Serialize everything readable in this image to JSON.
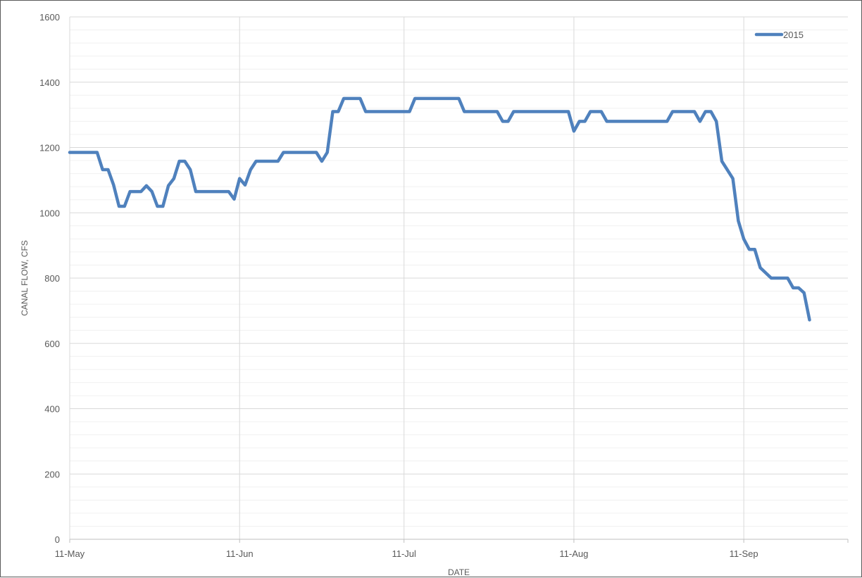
{
  "chart_data": {
    "type": "line",
    "xlabel": "DATE",
    "ylabel": "CANAL FLOW, CFS",
    "ylim": [
      0,
      1600
    ],
    "y_ticks": [
      0,
      200,
      400,
      600,
      800,
      1000,
      1200,
      1400,
      1600
    ],
    "x_ticks": [
      "11-May",
      "11-Jun",
      "11-Jul",
      "11-Aug",
      "11-Sep"
    ],
    "x_range": [
      "2015-05-11",
      "2015-09-30"
    ],
    "grid": true,
    "legend_position": "top-right",
    "series": [
      {
        "name": "2015",
        "color": "#4f81bd",
        "points": [
          [
            "2015-05-11",
            1185
          ],
          [
            "2015-05-16",
            1185
          ],
          [
            "2015-05-17",
            1132
          ],
          [
            "2015-05-18",
            1132
          ],
          [
            "2015-05-19",
            1085
          ],
          [
            "2015-05-20",
            1020
          ],
          [
            "2015-05-21",
            1020
          ],
          [
            "2015-05-22",
            1065
          ],
          [
            "2015-05-24",
            1065
          ],
          [
            "2015-05-25",
            1083
          ],
          [
            "2015-05-26",
            1065
          ],
          [
            "2015-05-27",
            1020
          ],
          [
            "2015-05-28",
            1020
          ],
          [
            "2015-05-29",
            1083
          ],
          [
            "2015-05-30",
            1105
          ],
          [
            "2015-05-31",
            1158
          ],
          [
            "2015-06-01",
            1158
          ],
          [
            "2015-06-02",
            1132
          ],
          [
            "2015-06-03",
            1065
          ],
          [
            "2015-06-09",
            1065
          ],
          [
            "2015-06-10",
            1042
          ],
          [
            "2015-06-11",
            1105
          ],
          [
            "2015-06-12",
            1085
          ],
          [
            "2015-06-13",
            1132
          ],
          [
            "2015-06-14",
            1158
          ],
          [
            "2015-06-18",
            1158
          ],
          [
            "2015-06-19",
            1185
          ],
          [
            "2015-06-25",
            1185
          ],
          [
            "2015-06-26",
            1158
          ],
          [
            "2015-06-27",
            1185
          ],
          [
            "2015-06-28",
            1310
          ],
          [
            "2015-06-29",
            1310
          ],
          [
            "2015-06-30",
            1350
          ],
          [
            "2015-07-03",
            1350
          ],
          [
            "2015-07-04",
            1310
          ],
          [
            "2015-07-12",
            1310
          ],
          [
            "2015-07-13",
            1350
          ],
          [
            "2015-07-21",
            1350
          ],
          [
            "2015-07-22",
            1310
          ],
          [
            "2015-07-28",
            1310
          ],
          [
            "2015-07-29",
            1280
          ],
          [
            "2015-07-30",
            1280
          ],
          [
            "2015-07-31",
            1310
          ],
          [
            "2015-08-10",
            1310
          ],
          [
            "2015-08-11",
            1250
          ],
          [
            "2015-08-12",
            1280
          ],
          [
            "2015-08-13",
            1280
          ],
          [
            "2015-08-14",
            1310
          ],
          [
            "2015-08-16",
            1310
          ],
          [
            "2015-08-17",
            1280
          ],
          [
            "2015-08-28",
            1280
          ],
          [
            "2015-08-29",
            1310
          ],
          [
            "2015-09-02",
            1310
          ],
          [
            "2015-09-03",
            1280
          ],
          [
            "2015-09-04",
            1310
          ],
          [
            "2015-09-05",
            1310
          ],
          [
            "2015-09-06",
            1280
          ],
          [
            "2015-09-07",
            1158
          ],
          [
            "2015-09-09",
            1105
          ],
          [
            "2015-09-10",
            975
          ],
          [
            "2015-09-11",
            920
          ],
          [
            "2015-09-12",
            888
          ],
          [
            "2015-09-13",
            888
          ],
          [
            "2015-09-14",
            832
          ],
          [
            "2015-09-16",
            800
          ],
          [
            "2015-09-19",
            800
          ],
          [
            "2015-09-20",
            770
          ],
          [
            "2015-09-21",
            770
          ],
          [
            "2015-09-22",
            755
          ],
          [
            "2015-09-23",
            672
          ]
        ]
      }
    ]
  }
}
